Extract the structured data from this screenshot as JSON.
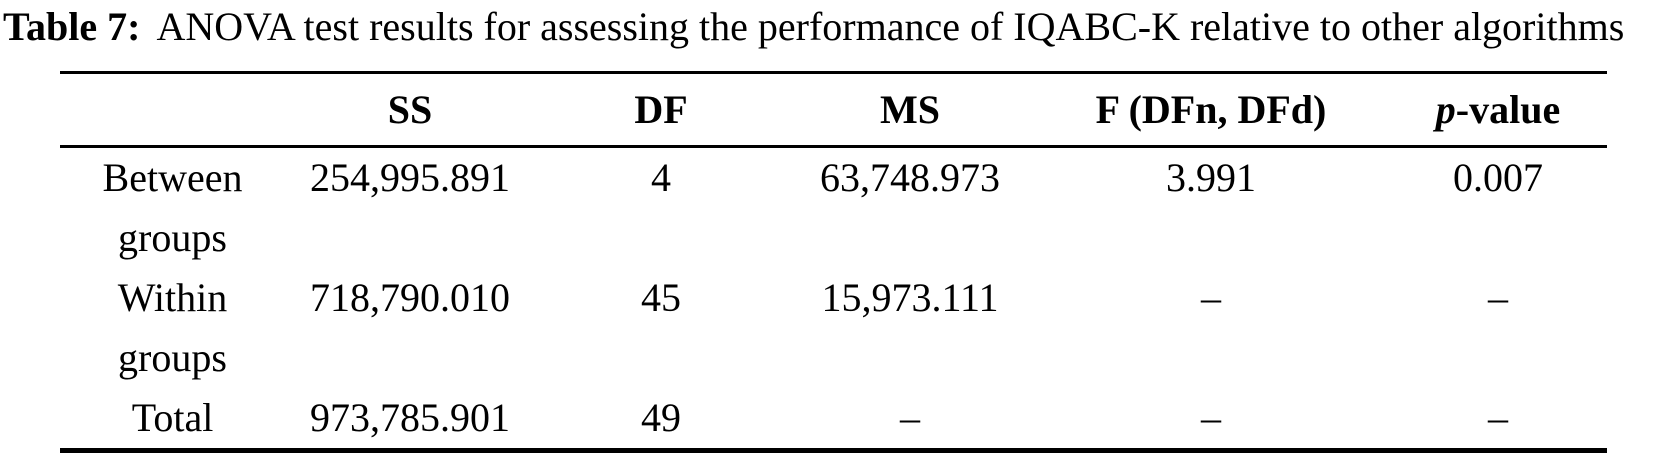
{
  "caption": {
    "label": "Table 7:",
    "text": "ANOVA test results for assessing the performance of IQABC-K relative to other algorithms"
  },
  "table": {
    "headers": [
      "",
      "SS",
      "DF",
      "MS",
      "F (DFn, DFd)"
    ],
    "p_header": {
      "italic": "p",
      "rest": "-value"
    },
    "rows": [
      {
        "label": "Between groups",
        "cells": [
          "254,995.891",
          "4",
          "63,748.973",
          "3.991",
          "0.007"
        ]
      },
      {
        "label": "Within groups",
        "cells": [
          "718,790.010",
          "45",
          "15,973.111",
          "–",
          "–"
        ]
      },
      {
        "label": "Total",
        "cells": [
          "973,785.901",
          "49",
          "–",
          "–",
          "–"
        ]
      }
    ]
  }
}
